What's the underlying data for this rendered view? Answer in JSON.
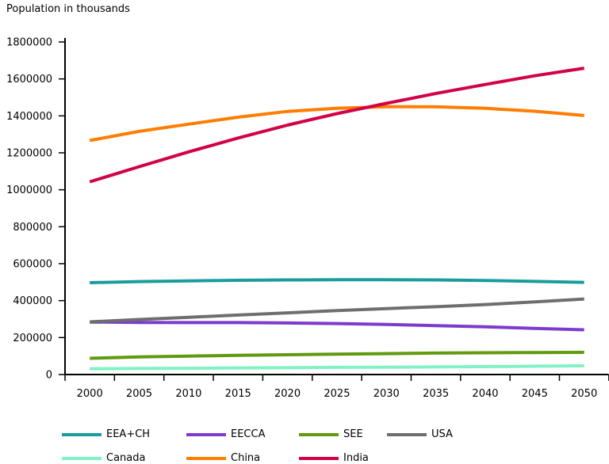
{
  "chart_data": {
    "type": "line",
    "title": "Population in thousands",
    "xlabel": "",
    "ylabel": "Population in thousands",
    "x": [
      2000,
      2005,
      2010,
      2015,
      2020,
      2025,
      2030,
      2035,
      2040,
      2045,
      2050
    ],
    "ylim": [
      0,
      1800000
    ],
    "ytick_step": 200000,
    "yticks": [
      0,
      200000,
      400000,
      600000,
      800000,
      1000000,
      1200000,
      1400000,
      1600000,
      1800000
    ],
    "grid": false,
    "legend_position": "bottom",
    "axis_color": "#000000",
    "series": [
      {
        "name": "EEA+CH",
        "color": "#1A9C9C",
        "values": [
          497000,
          503000,
          507000,
          510000,
          512000,
          513000,
          513000,
          512000,
          509000,
          504000,
          499000
        ]
      },
      {
        "name": "EECCA",
        "color": "#7D3BCD",
        "values": [
          284000,
          282000,
          281000,
          281000,
          279000,
          276000,
          271000,
          265000,
          258000,
          250000,
          242000
        ]
      },
      {
        "name": "SEE",
        "color": "#61990F",
        "values": [
          88000,
          95000,
          100000,
          104000,
          107000,
          110000,
          113000,
          116000,
          118000,
          119000,
          120000
        ]
      },
      {
        "name": "USA",
        "color": "#6E6E6E",
        "values": [
          285000,
          298000,
          310000,
          322000,
          334000,
          346000,
          357000,
          367000,
          379000,
          393000,
          409000
        ]
      },
      {
        "name": "Canada",
        "color": "#80F2C4",
        "values": [
          31000,
          33000,
          34000,
          36000,
          37000,
          39000,
          40000,
          41000,
          43000,
          45000,
          47000
        ]
      },
      {
        "name": "China",
        "color": "#FF7D00",
        "values": [
          1267000,
          1316000,
          1355000,
          1393000,
          1424000,
          1441000,
          1450000,
          1449000,
          1441000,
          1425000,
          1402000
        ]
      },
      {
        "name": "India",
        "color": "#D10047",
        "values": [
          1043000,
          1125000,
          1205000,
          1280000,
          1350000,
          1412000,
          1468000,
          1521000,
          1570000,
          1617000,
          1658000
        ]
      }
    ],
    "legend_rows": [
      [
        "EEA+CH",
        "EECCA",
        "SEE",
        "USA"
      ],
      [
        "Canada",
        "China",
        "India"
      ]
    ]
  }
}
